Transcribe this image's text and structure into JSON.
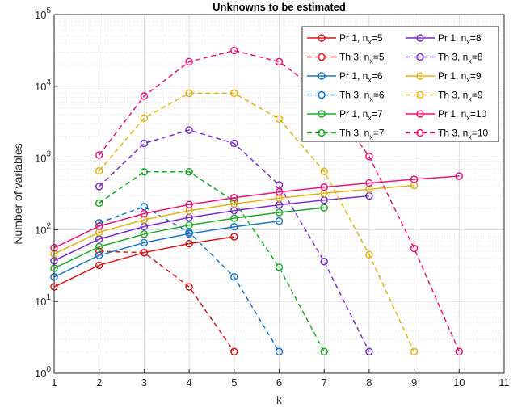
{
  "chart_data": {
    "type": "line",
    "title": "Unknowns to be estimated",
    "xlabel": "k",
    "ylabel": "Number of variables",
    "xlim": [
      1,
      11
    ],
    "ylim_log10": [
      0,
      5
    ],
    "yscale": "log",
    "grid": true,
    "legend_location": "top-right",
    "x_ticks": [
      "1",
      "2",
      "3",
      "4",
      "5",
      "6",
      "7",
      "8",
      "9",
      "10",
      "11"
    ],
    "y_ticks": [
      {
        "base": "10",
        "exp": "0"
      },
      {
        "base": "10",
        "exp": "1"
      },
      {
        "base": "10",
        "exp": "2"
      },
      {
        "base": "10",
        "exp": "3"
      },
      {
        "base": "10",
        "exp": "4"
      },
      {
        "base": "10",
        "exp": "5"
      }
    ],
    "series": [
      {
        "name_main": "Pr 1, n",
        "name_sub": "x",
        "name_tail": "=5",
        "color": "#d7191c",
        "dashed": false,
        "x": [
          1,
          2,
          3,
          4,
          5
        ],
        "y": [
          16,
          32,
          48,
          64,
          80
        ]
      },
      {
        "name_main": "Th 3, n",
        "name_sub": "x",
        "name_tail": "=5",
        "color": "#d7191c",
        "dashed": true,
        "x": [
          2,
          3,
          4,
          5
        ],
        "y": [
          50,
          48,
          16,
          2
        ]
      },
      {
        "name_main": "Pr 1, n",
        "name_sub": "x",
        "name_tail": "=6",
        "color": "#1f77c4",
        "dashed": false,
        "x": [
          1,
          2,
          3,
          4,
          5,
          6
        ],
        "y": [
          22,
          44,
          66,
          88,
          110,
          132
        ]
      },
      {
        "name_main": "Th 3, n",
        "name_sub": "x",
        "name_tail": "=6",
        "color": "#1f77c4",
        "dashed": true,
        "x": [
          2,
          3,
          4,
          5,
          6
        ],
        "y": [
          125,
          210,
          92,
          22,
          2
        ]
      },
      {
        "name_main": "Pr 1, n",
        "name_sub": "x",
        "name_tail": "=7",
        "color": "#1faa2c",
        "dashed": false,
        "x": [
          1,
          2,
          3,
          4,
          5,
          6,
          7
        ],
        "y": [
          29,
          58,
          87,
          116,
          145,
          174,
          203
        ]
      },
      {
        "name_main": "Th 3, n",
        "name_sub": "x",
        "name_tail": "=7",
        "color": "#1faa2c",
        "dashed": true,
        "x": [
          2,
          3,
          4,
          5,
          6,
          7
        ],
        "y": [
          235,
          640,
          640,
          250,
          30,
          2
        ]
      },
      {
        "name_main": "Pr 1, n",
        "name_sub": "x",
        "name_tail": "=8",
        "color": "#7a2fc8",
        "dashed": false,
        "x": [
          1,
          2,
          3,
          4,
          5,
          6,
          7,
          8
        ],
        "y": [
          37,
          74,
          111,
          148,
          185,
          222,
          259,
          296
        ]
      },
      {
        "name_main": "Th 3, n",
        "name_sub": "x",
        "name_tail": "=8",
        "color": "#7a2fc8",
        "dashed": true,
        "x": [
          2,
          3,
          4,
          5,
          6,
          7,
          8
        ],
        "y": [
          400,
          1600,
          2450,
          1600,
          420,
          36,
          2
        ]
      },
      {
        "name_main": "Pr 1, n",
        "name_sub": "x",
        "name_tail": "=9",
        "color": "#e0b41a",
        "dashed": false,
        "x": [
          1,
          2,
          3,
          4,
          5,
          6,
          7,
          8,
          9
        ],
        "y": [
          46,
          92,
          138,
          184,
          230,
          276,
          322,
          368,
          414
        ]
      },
      {
        "name_main": "Th 3, n",
        "name_sub": "x",
        "name_tail": "=9",
        "color": "#e0b41a",
        "dashed": true,
        "x": [
          2,
          3,
          4,
          5,
          6,
          7,
          8,
          9
        ],
        "y": [
          660,
          3600,
          8000,
          8000,
          3500,
          650,
          45,
          2
        ]
      },
      {
        "name_main": "Pr 1, n",
        "name_sub": "x",
        "name_tail": "=10",
        "color": "#e5177b",
        "dashed": false,
        "x": [
          1,
          2,
          3,
          4,
          5,
          6,
          7,
          8,
          9,
          10
        ],
        "y": [
          56,
          112,
          168,
          224,
          280,
          336,
          392,
          448,
          504,
          560
        ]
      },
      {
        "name_main": "Th 3, n",
        "name_sub": "x",
        "name_tail": "=10",
        "color": "#e5177b",
        "dashed": true,
        "x": [
          2,
          3,
          4,
          5,
          6,
          7,
          8,
          9,
          10
        ],
        "y": [
          1100,
          7300,
          22000,
          31500,
          22000,
          7500,
          1050,
          55,
          2
        ]
      }
    ]
  }
}
